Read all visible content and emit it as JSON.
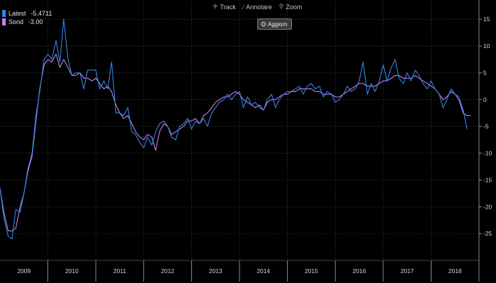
{
  "toolbar": {
    "track_label": "Track",
    "annotate_label": "Annotare",
    "zoom_label": "Zoom",
    "refresh_label": "Aggiorn"
  },
  "legend": [
    {
      "label": "Latest",
      "value": "-5.4711",
      "color": "#2f86e8"
    },
    {
      "label": "Sond",
      "value": "-3.00",
      "color": "#c77df5"
    }
  ],
  "chart_data": {
    "type": "line",
    "title": "",
    "xlabel": "",
    "ylabel": "",
    "x_range": [
      2009.0,
      2019.0
    ],
    "ylim": [
      -30,
      17
    ],
    "y_ticks": [
      15,
      10,
      5,
      0,
      -5,
      -10,
      -15,
      -20,
      -25
    ],
    "x_tick_labels": [
      "2009",
      "2010",
      "2011",
      "2012",
      "2013",
      "2014",
      "2015",
      "2016",
      "2017",
      "2018"
    ],
    "grid": true,
    "legend_position": "top-left",
    "series": [
      {
        "name": "Latest",
        "color": "#2f86e8",
        "points": [
          [
            2009.0,
            -16.5
          ],
          [
            2009.08,
            -22.0
          ],
          [
            2009.17,
            -25.5
          ],
          [
            2009.25,
            -26.0
          ],
          [
            2009.33,
            -20.5
          ],
          [
            2009.42,
            -21.0
          ],
          [
            2009.5,
            -17.5
          ],
          [
            2009.58,
            -13.0
          ],
          [
            2009.67,
            -10.0
          ],
          [
            2009.75,
            -3.0
          ],
          [
            2009.83,
            1.5
          ],
          [
            2009.92,
            7.5
          ],
          [
            2010.0,
            8.5
          ],
          [
            2010.08,
            7.5
          ],
          [
            2010.17,
            11.0
          ],
          [
            2010.25,
            7.0
          ],
          [
            2010.33,
            15.0
          ],
          [
            2010.42,
            7.5
          ],
          [
            2010.5,
            4.5
          ],
          [
            2010.58,
            5.0
          ],
          [
            2010.67,
            5.0
          ],
          [
            2010.75,
            2.0
          ],
          [
            2010.83,
            5.5
          ],
          [
            2010.92,
            5.5
          ],
          [
            2011.0,
            5.5
          ],
          [
            2011.08,
            2.0
          ],
          [
            2011.17,
            3.5
          ],
          [
            2011.25,
            2.0
          ],
          [
            2011.33,
            7.0
          ],
          [
            2011.42,
            -2.5
          ],
          [
            2011.5,
            -2.5
          ],
          [
            2011.58,
            -3.0
          ],
          [
            2011.67,
            -1.5
          ],
          [
            2011.75,
            -6.0
          ],
          [
            2011.83,
            -6.5
          ],
          [
            2011.92,
            -8.0
          ],
          [
            2012.0,
            -9.0
          ],
          [
            2012.08,
            -7.0
          ],
          [
            2012.17,
            -8.5
          ],
          [
            2012.25,
            -6.0
          ],
          [
            2012.33,
            -4.5
          ],
          [
            2012.42,
            -4.0
          ],
          [
            2012.5,
            -5.0
          ],
          [
            2012.58,
            -7.0
          ],
          [
            2012.67,
            -7.5
          ],
          [
            2012.75,
            -5.0
          ],
          [
            2012.83,
            -4.5
          ],
          [
            2012.92,
            -3.5
          ],
          [
            2013.0,
            -5.5
          ],
          [
            2013.08,
            -4.0
          ],
          [
            2013.17,
            -4.5
          ],
          [
            2013.25,
            -3.5
          ],
          [
            2013.33,
            -5.0
          ],
          [
            2013.42,
            -2.5
          ],
          [
            2013.5,
            -1.5
          ],
          [
            2013.58,
            -0.5
          ],
          [
            2013.67,
            0.0
          ],
          [
            2013.75,
            1.0
          ],
          [
            2013.83,
            0.0
          ],
          [
            2013.92,
            1.0
          ],
          [
            2014.0,
            1.5
          ],
          [
            2014.08,
            -1.5
          ],
          [
            2014.17,
            0.5
          ],
          [
            2014.25,
            -1.0
          ],
          [
            2014.33,
            -0.5
          ],
          [
            2014.42,
            -1.5
          ],
          [
            2014.5,
            -2.0
          ],
          [
            2014.58,
            0.0
          ],
          [
            2014.67,
            1.0
          ],
          [
            2014.75,
            -1.5
          ],
          [
            2014.83,
            0.0
          ],
          [
            2014.92,
            1.0
          ],
          [
            2015.0,
            1.5
          ],
          [
            2015.08,
            1.5
          ],
          [
            2015.17,
            2.0
          ],
          [
            2015.25,
            2.5
          ],
          [
            2015.33,
            1.0
          ],
          [
            2015.42,
            2.5
          ],
          [
            2015.5,
            3.0
          ],
          [
            2015.58,
            2.0
          ],
          [
            2015.67,
            2.5
          ],
          [
            2015.75,
            0.5
          ],
          [
            2015.83,
            1.5
          ],
          [
            2015.92,
            1.0
          ],
          [
            2016.0,
            -0.5
          ],
          [
            2016.08,
            0.0
          ],
          [
            2016.17,
            1.0
          ],
          [
            2016.25,
            2.5
          ],
          [
            2016.33,
            1.5
          ],
          [
            2016.42,
            2.0
          ],
          [
            2016.5,
            3.5
          ],
          [
            2016.58,
            7.0
          ],
          [
            2016.67,
            1.0
          ],
          [
            2016.75,
            3.0
          ],
          [
            2016.83,
            1.5
          ],
          [
            2016.92,
            3.5
          ],
          [
            2017.0,
            6.5
          ],
          [
            2017.08,
            3.5
          ],
          [
            2017.17,
            6.0
          ],
          [
            2017.25,
            7.5
          ],
          [
            2017.33,
            4.0
          ],
          [
            2017.42,
            3.0
          ],
          [
            2017.5,
            5.0
          ],
          [
            2017.58,
            3.5
          ],
          [
            2017.67,
            5.5
          ],
          [
            2017.75,
            4.5
          ],
          [
            2017.83,
            3.0
          ],
          [
            2017.92,
            2.0
          ],
          [
            2018.0,
            3.5
          ],
          [
            2018.08,
            2.0
          ],
          [
            2018.17,
            1.0
          ],
          [
            2018.25,
            -1.5
          ],
          [
            2018.33,
            0.0
          ],
          [
            2018.42,
            2.0
          ],
          [
            2018.5,
            1.0
          ],
          [
            2018.58,
            0.5
          ],
          [
            2018.67,
            -2.0
          ],
          [
            2018.75,
            -5.4711
          ]
        ]
      },
      {
        "name": "Sond",
        "color": "#c77df5",
        "points": [
          [
            2009.0,
            -16.5
          ],
          [
            2009.08,
            -21.0
          ],
          [
            2009.17,
            -24.5
          ],
          [
            2009.25,
            -24.5
          ],
          [
            2009.33,
            -24.0
          ],
          [
            2009.42,
            -20.0
          ],
          [
            2009.5,
            -17.5
          ],
          [
            2009.58,
            -13.5
          ],
          [
            2009.67,
            -10.5
          ],
          [
            2009.75,
            -4.0
          ],
          [
            2009.83,
            2.0
          ],
          [
            2009.92,
            6.5
          ],
          [
            2010.0,
            7.5
          ],
          [
            2010.08,
            7.0
          ],
          [
            2010.17,
            8.5
          ],
          [
            2010.25,
            6.0
          ],
          [
            2010.33,
            7.5
          ],
          [
            2010.42,
            6.0
          ],
          [
            2010.5,
            4.5
          ],
          [
            2010.58,
            4.5
          ],
          [
            2010.67,
            5.0
          ],
          [
            2010.75,
            4.0
          ],
          [
            2010.83,
            4.0
          ],
          [
            2010.92,
            3.5
          ],
          [
            2011.0,
            4.0
          ],
          [
            2011.08,
            3.0
          ],
          [
            2011.17,
            2.0
          ],
          [
            2011.25,
            2.5
          ],
          [
            2011.33,
            1.5
          ],
          [
            2011.42,
            -1.0
          ],
          [
            2011.5,
            -2.5
          ],
          [
            2011.58,
            -3.5
          ],
          [
            2011.67,
            -3.0
          ],
          [
            2011.75,
            -4.5
          ],
          [
            2011.83,
            -6.0
          ],
          [
            2011.92,
            -7.0
          ],
          [
            2012.0,
            -7.5
          ],
          [
            2012.08,
            -6.5
          ],
          [
            2012.17,
            -7.0
          ],
          [
            2012.25,
            -9.5
          ],
          [
            2012.33,
            -6.0
          ],
          [
            2012.42,
            -4.5
          ],
          [
            2012.5,
            -5.0
          ],
          [
            2012.58,
            -6.5
          ],
          [
            2012.67,
            -6.0
          ],
          [
            2012.75,
            -5.5
          ],
          [
            2012.83,
            -5.0
          ],
          [
            2012.92,
            -4.0
          ],
          [
            2013.0,
            -4.0
          ],
          [
            2013.08,
            -3.5
          ],
          [
            2013.17,
            -4.5
          ],
          [
            2013.25,
            -3.0
          ],
          [
            2013.33,
            -2.5
          ],
          [
            2013.42,
            -1.5
          ],
          [
            2013.5,
            -0.5
          ],
          [
            2013.58,
            0.0
          ],
          [
            2013.67,
            0.5
          ],
          [
            2013.75,
            0.5
          ],
          [
            2013.83,
            1.0
          ],
          [
            2013.92,
            1.5
          ],
          [
            2014.0,
            1.0
          ],
          [
            2014.08,
            0.0
          ],
          [
            2014.17,
            -0.5
          ],
          [
            2014.25,
            -1.0
          ],
          [
            2014.33,
            -1.5
          ],
          [
            2014.42,
            -1.0
          ],
          [
            2014.5,
            -2.0
          ],
          [
            2014.58,
            -0.5
          ],
          [
            2014.67,
            0.0
          ],
          [
            2014.75,
            0.0
          ],
          [
            2014.83,
            0.5
          ],
          [
            2014.92,
            1.0
          ],
          [
            2015.0,
            1.0
          ],
          [
            2015.08,
            1.5
          ],
          [
            2015.17,
            1.5
          ],
          [
            2015.25,
            2.0
          ],
          [
            2015.33,
            2.0
          ],
          [
            2015.42,
            2.0
          ],
          [
            2015.5,
            2.0
          ],
          [
            2015.58,
            1.5
          ],
          [
            2015.67,
            1.5
          ],
          [
            2015.75,
            1.0
          ],
          [
            2015.83,
            1.0
          ],
          [
            2015.92,
            1.0
          ],
          [
            2016.0,
            0.5
          ],
          [
            2016.08,
            0.5
          ],
          [
            2016.17,
            1.0
          ],
          [
            2016.25,
            1.5
          ],
          [
            2016.33,
            2.0
          ],
          [
            2016.42,
            2.5
          ],
          [
            2016.5,
            3.0
          ],
          [
            2016.58,
            3.0
          ],
          [
            2016.67,
            2.5
          ],
          [
            2016.75,
            2.5
          ],
          [
            2016.83,
            2.5
          ],
          [
            2016.92,
            3.0
          ],
          [
            2017.0,
            3.5
          ],
          [
            2017.08,
            3.5
          ],
          [
            2017.17,
            4.0
          ],
          [
            2017.25,
            4.5
          ],
          [
            2017.33,
            4.5
          ],
          [
            2017.42,
            4.0
          ],
          [
            2017.5,
            4.0
          ],
          [
            2017.58,
            4.0
          ],
          [
            2017.67,
            4.5
          ],
          [
            2017.75,
            4.0
          ],
          [
            2017.83,
            3.5
          ],
          [
            2017.92,
            3.0
          ],
          [
            2018.0,
            2.5
          ],
          [
            2018.08,
            2.0
          ],
          [
            2018.17,
            1.0
          ],
          [
            2018.25,
            0.0
          ],
          [
            2018.33,
            0.5
          ],
          [
            2018.42,
            1.5
          ],
          [
            2018.5,
            1.0
          ],
          [
            2018.58,
            0.0
          ],
          [
            2018.67,
            -2.5
          ],
          [
            2018.75,
            -3.0
          ],
          [
            2018.83,
            -3.0
          ]
        ]
      }
    ]
  }
}
